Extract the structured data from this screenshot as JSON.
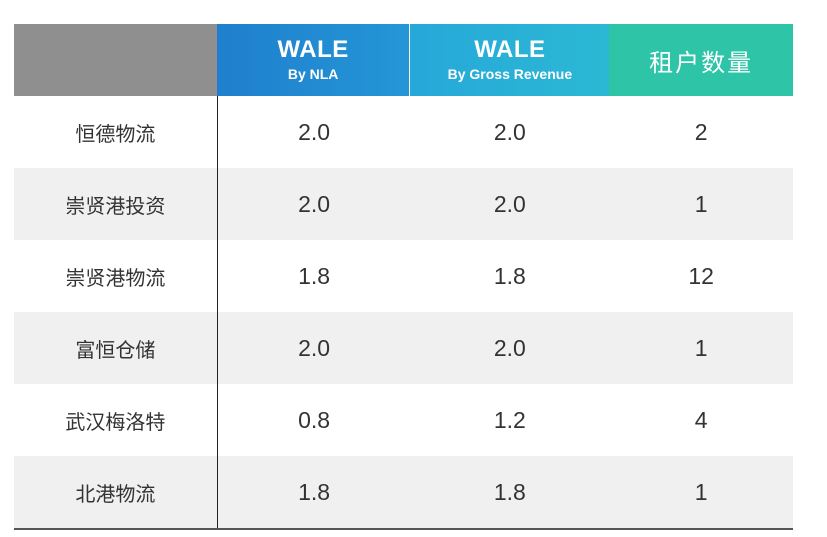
{
  "header": {
    "col0": "",
    "col1_title": "WALE",
    "col1_sub": "By NLA",
    "col2_title": "WALE",
    "col2_sub": "By Gross Revenue",
    "col3_title": "租户数量"
  },
  "rows": [
    {
      "name": "恒德物流",
      "nla": "2.0",
      "gross": "2.0",
      "tenants": "2"
    },
    {
      "name": "崇贤港投资",
      "nla": "2.0",
      "gross": "2.0",
      "tenants": "1"
    },
    {
      "name": "崇贤港物流",
      "nla": "1.8",
      "gross": "1.8",
      "tenants": "12"
    },
    {
      "name": "富恒仓储",
      "nla": "2.0",
      "gross": "2.0",
      "tenants": "1"
    },
    {
      "name": "武汉梅洛特",
      "nla": "0.8",
      "gross": "1.2",
      "tenants": "4"
    },
    {
      "name": "北港物流",
      "nla": "1.8",
      "gross": "1.8",
      "tenants": "1"
    }
  ],
  "colors": {
    "header_gray": "#8f8f8f",
    "header_blue": "#1f7fce",
    "header_cyan": "#26a8d9",
    "header_teal": "#2dc4a7",
    "row_alt": "#f0f0f0"
  }
}
